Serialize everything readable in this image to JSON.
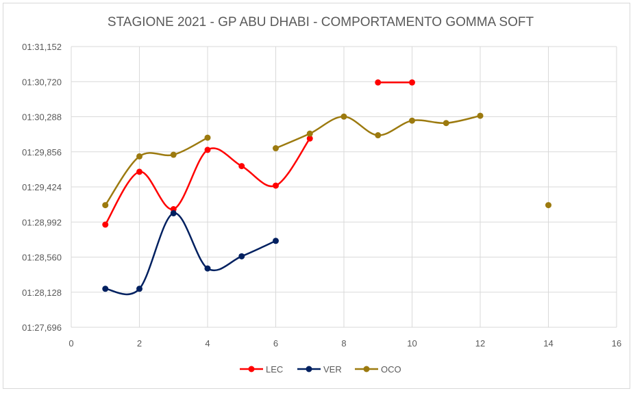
{
  "chart_data": {
    "type": "scatter",
    "title": "STAGIONE 2021 - GP ABU DHABI - COMPORTAMENTO GOMMA SOFT",
    "xlabel": "",
    "ylabel": "",
    "xlim": [
      0,
      16
    ],
    "x_ticks": [
      "0",
      "2",
      "4",
      "6",
      "8",
      "10",
      "12",
      "14",
      "16"
    ],
    "ylim": [
      87.696,
      91.152
    ],
    "y_ticks": [
      "01:27,696",
      "01:28,128",
      "01:28,560",
      "01:28,992",
      "01:29,424",
      "01:29,856",
      "01:30,288",
      "01:30,720",
      "01:31,152"
    ],
    "grid": true,
    "legend_position": "bottom",
    "smooth_lines": true,
    "series": [
      {
        "name": "LEC",
        "color": "#ff0000",
        "segments": [
          [
            [
              1,
              88.96
            ],
            [
              2,
              89.61
            ],
            [
              3,
              89.15
            ],
            [
              4,
              89.88
            ],
            [
              5,
              89.68
            ],
            [
              6,
              89.44
            ],
            [
              7,
              90.02
            ]
          ],
          [
            [
              9,
              90.71
            ],
            [
              10,
              90.71
            ]
          ]
        ]
      },
      {
        "name": "VER",
        "color": "#002060",
        "segments": [
          [
            [
              1,
              88.17
            ],
            [
              2,
              88.17
            ],
            [
              3,
              89.1
            ],
            [
              4,
              88.42
            ],
            [
              5,
              88.57
            ],
            [
              6,
              88.76
            ]
          ]
        ]
      },
      {
        "name": "OCO",
        "color": "#9c7a0f",
        "segments": [
          [
            [
              1,
              89.2
            ],
            [
              2,
              89.8
            ],
            [
              3,
              89.82
            ],
            [
              4,
              90.03
            ]
          ],
          [
            [
              6,
              89.9
            ],
            [
              7,
              90.08
            ],
            [
              8,
              90.29
            ],
            [
              9,
              90.06
            ],
            [
              10,
              90.24
            ],
            [
              11,
              90.21
            ],
            [
              12,
              90.3
            ]
          ],
          [
            [
              14,
              89.2
            ]
          ]
        ]
      }
    ]
  }
}
